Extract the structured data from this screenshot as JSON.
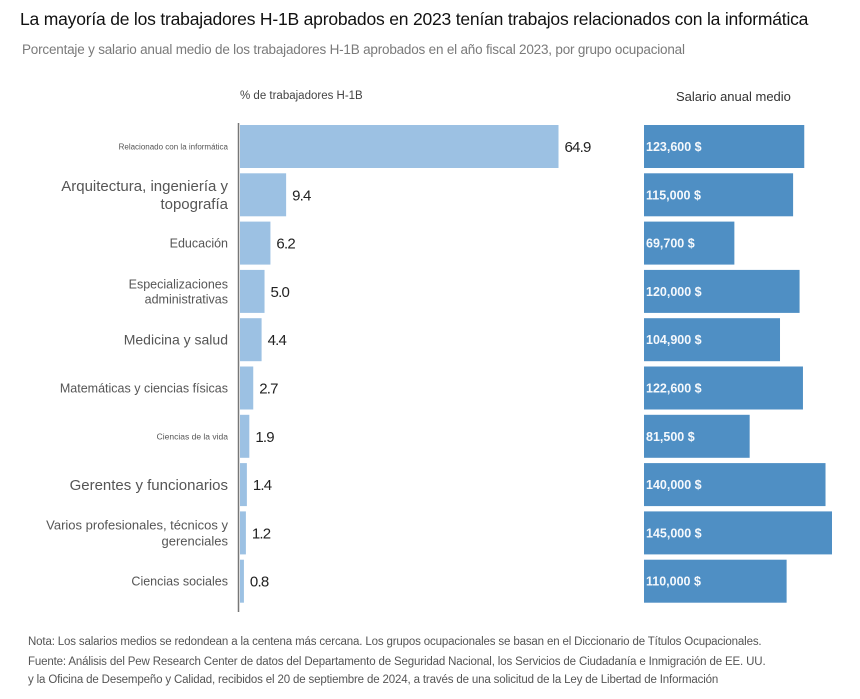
{
  "header": {
    "title": "La mayoría de los trabajadores H-1B aprobados en 2023 tenían trabajos relacionados con la informática",
    "subtitle": "Porcentaje y salario anual medio de los trabajadores H-1B aprobados en el año fiscal 2023, por grupo ocupacional"
  },
  "chart_data": [
    {
      "type": "bar",
      "orientation": "horizontal",
      "title": "% de trabajadores H-1B",
      "categories": [
        [
          "Relacionado con la informática"
        ],
        [
          "Arquitectura, ingeniería y",
          "topografía"
        ],
        [
          "Educación"
        ],
        [
          "Especializaciones",
          "administrativas"
        ],
        [
          "Medicina y salud"
        ],
        [
          "Matemáticas y ciencias físicas"
        ],
        [
          "Ciencias de la vida"
        ],
        [
          "Gerentes y funcionarios"
        ],
        [
          "Varios profesionales, técnicos y",
          "gerenciales"
        ],
        [
          "Ciencias sociales"
        ]
      ],
      "values": [
        64.9,
        9.4,
        6.2,
        5.0,
        4.4,
        2.7,
        1.9,
        1.4,
        1.2,
        0.8
      ],
      "value_labels": [
        "64.9",
        "9.4",
        "6.2",
        "5.0",
        "4.4",
        "2.7",
        "1.9",
        "1.4",
        "1.2",
        "0.8"
      ],
      "xlim": [
        0,
        65
      ],
      "color": "#9cc1e3",
      "grid": false
    },
    {
      "type": "bar",
      "orientation": "horizontal",
      "title": "Salario anual medio",
      "values": [
        123600,
        115000,
        69700,
        120000,
        104900,
        122600,
        81500,
        140000,
        145000,
        110000
      ],
      "value_labels": [
        "123,600 $",
        "115,000 $",
        "69,700 $",
        "120,000 $",
        "104,900 $",
        "122,600 $",
        "81,500 $",
        "140,000 $",
        "145,000 $",
        "110,000 $"
      ],
      "xlim": [
        0,
        145000
      ],
      "color": "#4f8fc4",
      "grid": false
    }
  ],
  "footer": {
    "note": "Nota: Los salarios medios se redondean a la centena más cercana. Los grupos ocupacionales se basan en el Diccionario de Títulos Ocupacionales.",
    "source_line1": "Fuente: Análisis del Pew Research Center de datos del Departamento de Seguridad Nacional, los Servicios de Ciudadanía e Inmigración de EE. UU.",
    "source_line2": "y la Oficina de Desempeño y Calidad, recibidos el 20 de septiembre de 2024, a través de una solicitud de la Ley de Libertad de Información"
  }
}
